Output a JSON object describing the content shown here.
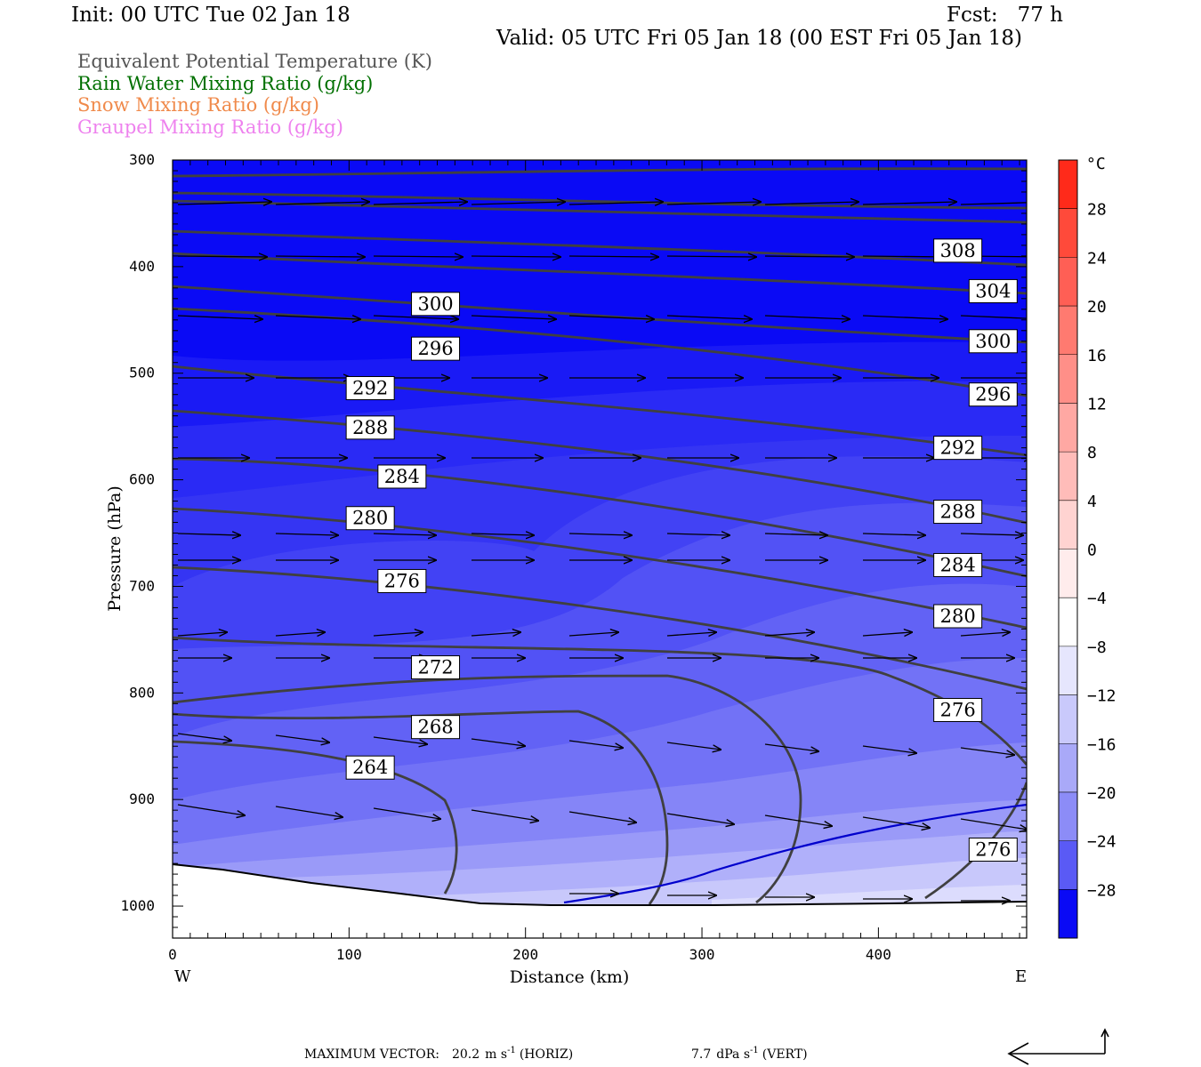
{
  "header": {
    "init": "Init: 00 UTC Tue 02 Jan 18",
    "fcst": "Fcst:   77 h",
    "valid": "Valid: 05 UTC Fri 05 Jan 18 (00 EST Fri 05 Jan 18)"
  },
  "legend": {
    "items": [
      {
        "label": "Equivalent Potential Temperature (K)",
        "color": "#555555"
      },
      {
        "label": "Rain Water Mixing Ratio (g/kg)",
        "color": "#007000"
      },
      {
        "label": "Snow Mixing Ratio (g/kg)",
        "color": "#f08a4b"
      },
      {
        "label": "Graupel Mixing Ratio (g/kg)",
        "color": "#ee82ee"
      }
    ]
  },
  "chart_data": {
    "type": "cross-section",
    "xlabel": "Distance (km)",
    "ylabel": "Pressure (hPa)",
    "xlim": [
      0,
      484
    ],
    "ylim": [
      1030,
      300
    ],
    "x_ticks": [
      0,
      100,
      200,
      300,
      400
    ],
    "y_ticks": [
      300,
      400,
      500,
      600,
      700,
      800,
      900,
      1000
    ],
    "x_end_labels": {
      "left": "W",
      "right": "E"
    },
    "colorbar": {
      "unit": "°C",
      "range": [
        -32,
        32
      ],
      "ticks": [
        28,
        24,
        20,
        16,
        12,
        8,
        4,
        0,
        -4,
        -8,
        -12,
        -16,
        -20,
        -24,
        -28
      ]
    },
    "theta_e_contours": [
      {
        "value": 308,
        "labels": [
          [
            445,
            385
          ]
        ]
      },
      {
        "value": 304,
        "labels": [
          [
            465,
            423
          ]
        ]
      },
      {
        "value": 300,
        "labels": [
          [
            149,
            435
          ],
          [
            465,
            470
          ]
        ]
      },
      {
        "value": 296,
        "labels": [
          [
            149,
            477
          ],
          [
            465,
            520
          ]
        ]
      },
      {
        "value": 292,
        "labels": [
          [
            112,
            514
          ],
          [
            445,
            570
          ]
        ]
      },
      {
        "value": 288,
        "labels": [
          [
            112,
            551
          ],
          [
            445,
            630
          ]
        ]
      },
      {
        "value": 284,
        "labels": [
          [
            130,
            597
          ],
          [
            445,
            680
          ]
        ]
      },
      {
        "value": 280,
        "labels": [
          [
            112,
            636
          ],
          [
            445,
            728
          ]
        ]
      },
      {
        "value": 276,
        "labels": [
          [
            130,
            695
          ],
          [
            445,
            816
          ],
          [
            465,
            947
          ]
        ]
      },
      {
        "value": 272,
        "labels": [
          [
            149,
            776
          ]
        ]
      },
      {
        "value": 268,
        "labels": [
          [
            149,
            832
          ]
        ]
      },
      {
        "value": 264,
        "labels": [
          [
            112,
            870
          ]
        ]
      }
    ],
    "footer": {
      "label": "MAXIMUM VECTOR:",
      "horiz_value": "20.2",
      "horiz_units": "m s",
      "horiz_kind": "(HORIZ)",
      "vert_value": "7.7",
      "vert_units": "dPa s",
      "vert_kind": "(VERT)",
      "exponent": "-1"
    }
  }
}
